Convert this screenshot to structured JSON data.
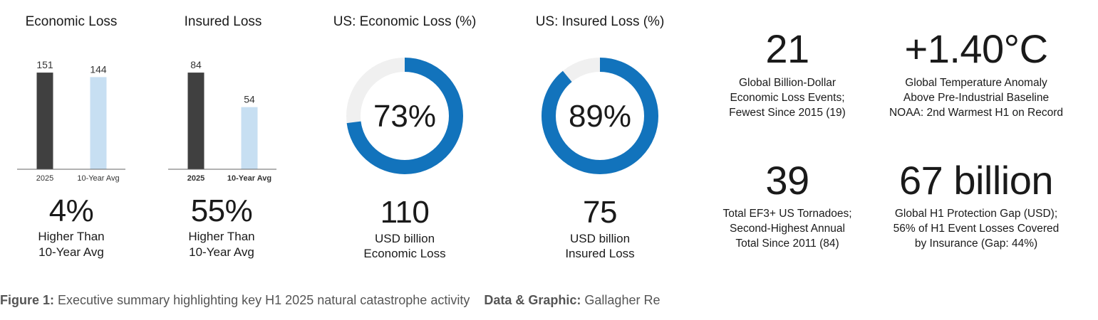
{
  "chart_data": [
    {
      "type": "bar",
      "title": "Economic Loss",
      "categories": [
        "2025",
        "10-Year Avg"
      ],
      "values": [
        151,
        144
      ],
      "ylim": [
        0,
        160
      ],
      "grid": false,
      "colors": [
        "#404040",
        "#c7dff2"
      ],
      "bold_category": false
    },
    {
      "type": "bar",
      "title": "Insured Loss",
      "categories": [
        "2025",
        "10-Year Avg"
      ],
      "values": [
        84,
        54
      ],
      "ylim": [
        0,
        89
      ],
      "grid": false,
      "colors": [
        "#404040",
        "#c7dff2"
      ],
      "bold_category": true
    },
    {
      "type": "pie",
      "title": "US: Economic Loss (%)",
      "percent": 73,
      "center_label": "73%",
      "colors": [
        "#1273bc",
        "#f0f0f0"
      ]
    },
    {
      "type": "pie",
      "title": "US: Insured Loss (%)",
      "percent": 89,
      "center_label": "89%",
      "colors": [
        "#1273bc",
        "#f0f0f0"
      ]
    }
  ],
  "panels": {
    "economic": {
      "big": "4%",
      "sub1": "Higher Than",
      "sub2": "10-Year Avg"
    },
    "insured": {
      "big": "55%",
      "sub1": "Higher Than",
      "sub2": "10-Year Avg"
    },
    "us_economic": {
      "big": "110",
      "sub1": "USD billion",
      "sub2": "Economic Loss"
    },
    "us_insured": {
      "big": "75",
      "sub1": "USD billion",
      "sub2": "Insured Loss"
    }
  },
  "stats": [
    {
      "value": "21",
      "lines": [
        "Global Billion-Dollar",
        "Economic Loss Events;",
        "Fewest Since 2015 (19)"
      ]
    },
    {
      "value": "+1.40°C",
      "lines": [
        "Global Temperature Anomaly",
        "Above Pre-Industrial Baseline",
        "NOAA: 2nd Warmest H1 on Record"
      ]
    },
    {
      "value": "39",
      "lines": [
        "Total EF3+ US Tornadoes;",
        "Second-Highest Annual",
        "Total Since 2011 (84)"
      ]
    },
    {
      "value": "67 billion",
      "lines": [
        "Global H1 Protection Gap (USD);",
        "56% of H1 Event Losses Covered",
        "by Insurance (Gap: 44%)"
      ]
    }
  ],
  "caption": {
    "figure_label": "Figure 1:",
    "figure_text": "Executive summary highlighting key H1 2025 natural catastrophe activity",
    "source_label": "Data & Graphic:",
    "source_text": "Gallagher Re"
  }
}
